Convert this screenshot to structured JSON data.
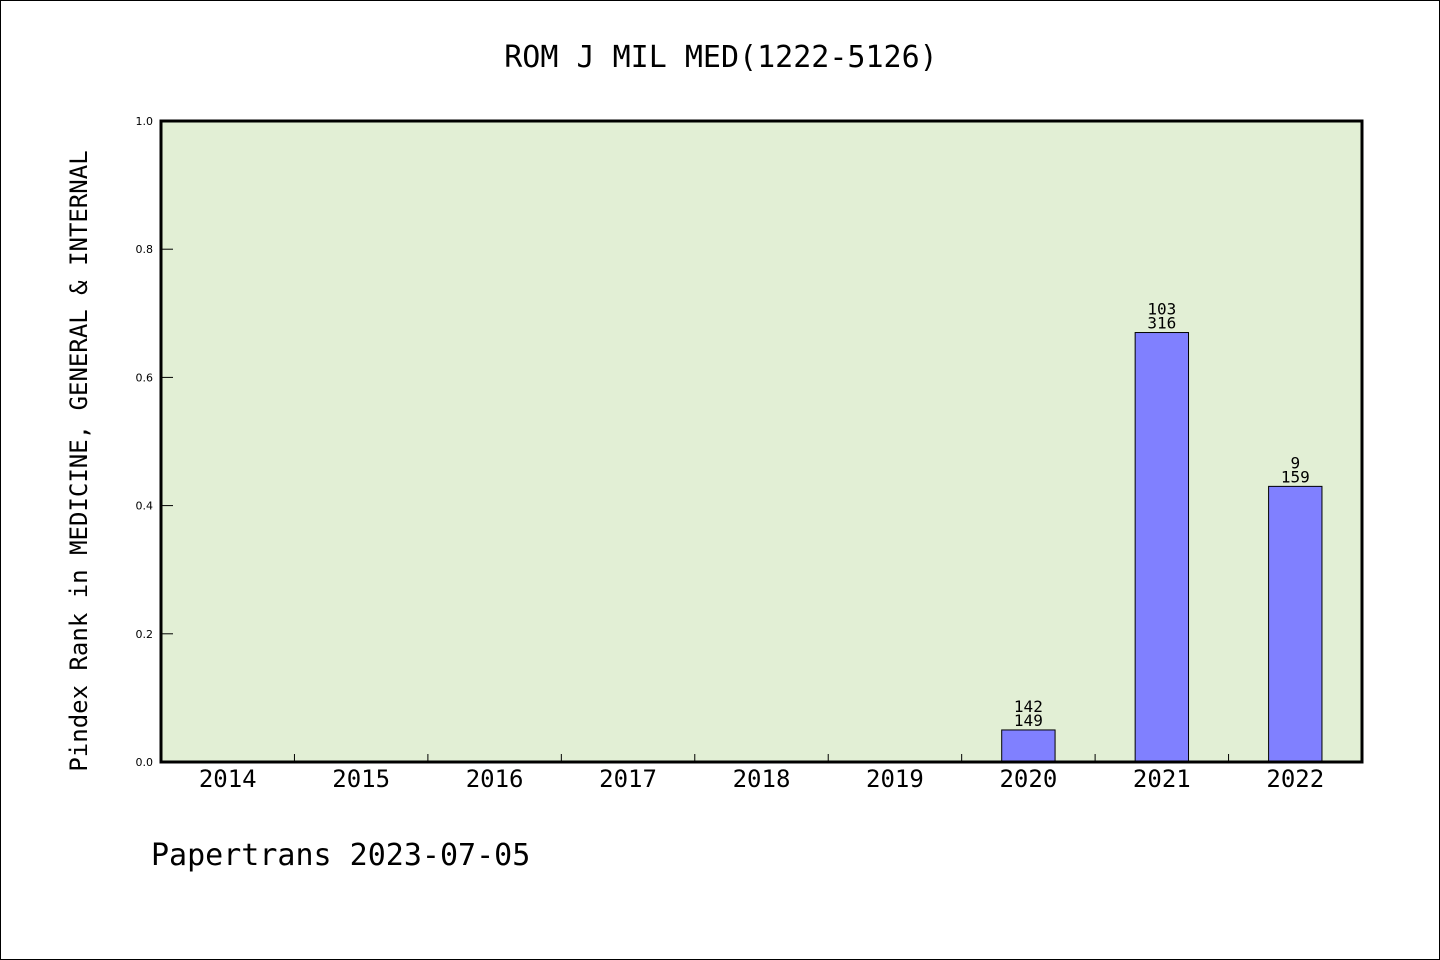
{
  "chart_data": {
    "type": "bar",
    "title": "ROM J MIL MED(1222-5126)",
    "ylabel": "Pindex Rank in MEDICINE, GENERAL & INTERNAL",
    "xlabel": "",
    "categories": [
      "2014",
      "2015",
      "2016",
      "2017",
      "2018",
      "2019",
      "2020",
      "2021",
      "2022"
    ],
    "values": [
      null,
      null,
      null,
      null,
      null,
      null,
      0.05,
      0.67,
      0.43
    ],
    "bar_labels": [
      null,
      null,
      null,
      null,
      null,
      null,
      {
        "top": "142",
        "bottom": "149"
      },
      {
        "top": "103",
        "bottom": "316"
      },
      {
        "top": "9",
        "bottom": "159"
      }
    ],
    "ylim": [
      0.0,
      1.0
    ],
    "yticks": [
      "0.0",
      "0.2",
      "0.4",
      "0.6",
      "0.8",
      "1.0"
    ],
    "grid": false,
    "colors": {
      "plot_background": "#e2efd5",
      "bar_fill": "#8080ff",
      "bar_stroke": "#000000",
      "axis": "#000000"
    }
  },
  "footer": {
    "text": "Papertrans 2023-07-05"
  }
}
